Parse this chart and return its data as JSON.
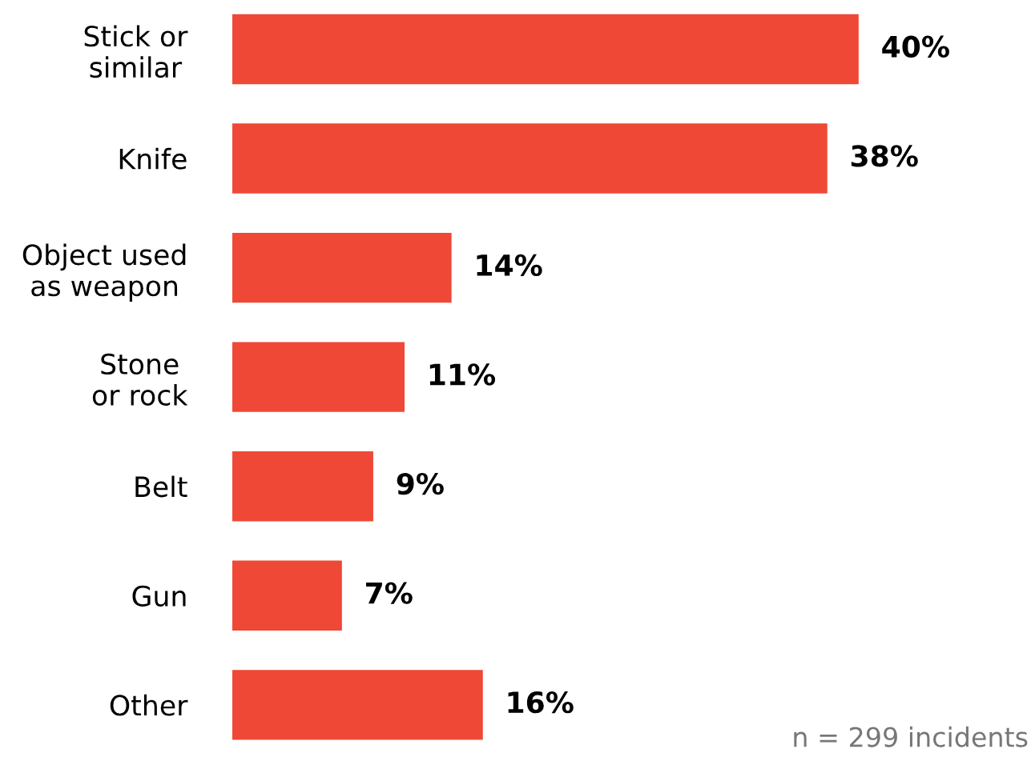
{
  "chart_data": {
    "type": "bar",
    "orientation": "horizontal",
    "categories": [
      "Stick or\nsimilar",
      "Knife",
      "Object used\nas weapon",
      "Stone\nor rock",
      "Belt",
      "Gun",
      "Other"
    ],
    "values": [
      40,
      38,
      14,
      11,
      9,
      7,
      16
    ],
    "color": "#ef4836",
    "data_labels": true,
    "value_labels": [
      "40%",
      "38%",
      "14%",
      "11%",
      "9%",
      "7%",
      "16%"
    ],
    "annotations": [
      "n = 299 incidents"
    ]
  }
}
